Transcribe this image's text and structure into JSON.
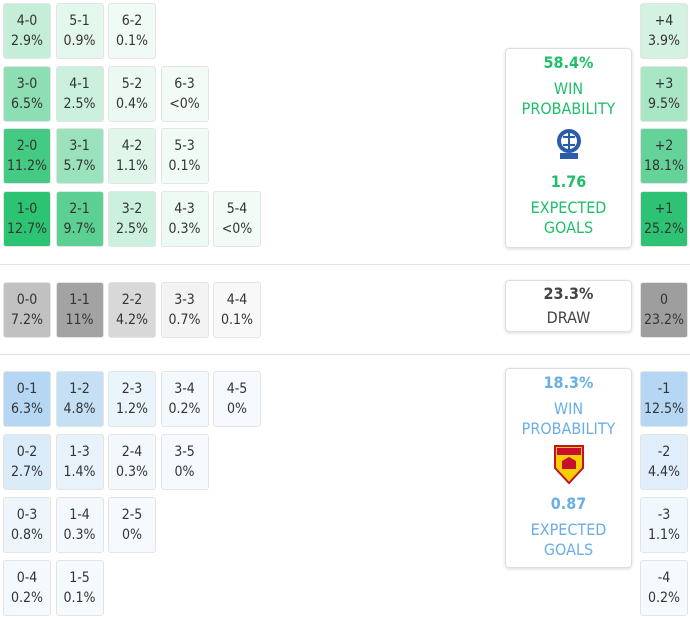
{
  "home": {
    "color": "#1fbf6a",
    "rows": [
      [
        {
          "score": "4-0",
          "prob": "2.9%"
        },
        {
          "score": "5-1",
          "prob": "0.9%"
        },
        {
          "score": "6-2",
          "prob": "0.1%"
        }
      ],
      [
        {
          "score": "3-0",
          "prob": "6.5%"
        },
        {
          "score": "4-1",
          "prob": "2.5%"
        },
        {
          "score": "5-2",
          "prob": "0.4%"
        },
        {
          "score": "6-3",
          "prob": "<0%"
        }
      ],
      [
        {
          "score": "2-0",
          "prob": "11.2%"
        },
        {
          "score": "3-1",
          "prob": "5.7%"
        },
        {
          "score": "4-2",
          "prob": "1.1%"
        },
        {
          "score": "5-3",
          "prob": "0.1%"
        }
      ],
      [
        {
          "score": "1-0",
          "prob": "12.7%"
        },
        {
          "score": "2-1",
          "prob": "9.7%"
        },
        {
          "score": "3-2",
          "prob": "2.5%"
        },
        {
          "score": "4-3",
          "prob": "0.3%"
        },
        {
          "score": "5-4",
          "prob": "<0%"
        }
      ]
    ],
    "margins": [
      {
        "label": "+4",
        "prob": "3.9%"
      },
      {
        "label": "+3",
        "prob": "9.5%"
      },
      {
        "label": "+2",
        "prob": "18.1%"
      },
      {
        "label": "+1",
        "prob": "25.2%"
      }
    ],
    "summary": {
      "win_pct": "58.4%",
      "win_label": "WIN PROBABILITY",
      "xg": "1.76",
      "xg_label": "EXPECTED GOALS"
    }
  },
  "draw": {
    "color": "#8f8f8f",
    "rows": [
      [
        {
          "score": "0-0",
          "prob": "7.2%"
        },
        {
          "score": "1-1",
          "prob": "11%"
        },
        {
          "score": "2-2",
          "prob": "4.2%"
        },
        {
          "score": "3-3",
          "prob": "0.7%"
        },
        {
          "score": "4-4",
          "prob": "0.1%"
        }
      ]
    ],
    "margins": [
      {
        "label": "0",
        "prob": "23.2%"
      }
    ],
    "summary": {
      "pct": "23.3%",
      "label": "DRAW"
    }
  },
  "away": {
    "color": "#6aaee6",
    "rows": [
      [
        {
          "score": "0-1",
          "prob": "6.3%"
        },
        {
          "score": "1-2",
          "prob": "4.8%"
        },
        {
          "score": "2-3",
          "prob": "1.2%"
        },
        {
          "score": "3-4",
          "prob": "0.2%"
        },
        {
          "score": "4-5",
          "prob": "0%"
        }
      ],
      [
        {
          "score": "0-2",
          "prob": "2.7%"
        },
        {
          "score": "1-3",
          "prob": "1.4%"
        },
        {
          "score": "2-4",
          "prob": "0.3%"
        },
        {
          "score": "3-5",
          "prob": "0%"
        }
      ],
      [
        {
          "score": "0-3",
          "prob": "0.8%"
        },
        {
          "score": "1-4",
          "prob": "0.3%"
        },
        {
          "score": "2-5",
          "prob": "0%"
        }
      ],
      [
        {
          "score": "0-4",
          "prob": "0.2%"
        },
        {
          "score": "1-5",
          "prob": "0.1%"
        }
      ]
    ],
    "margins": [
      {
        "label": "-1",
        "prob": "12.5%"
      },
      {
        "label": "-2",
        "prob": "4.4%"
      },
      {
        "label": "-3",
        "prob": "1.1%"
      },
      {
        "label": "-4",
        "prob": "0.2%"
      }
    ],
    "summary": {
      "win_pct": "18.3%",
      "win_label": "WIN PROBABILITY",
      "xg": "0.87",
      "xg_label": "EXPECTED GOALS"
    }
  }
}
